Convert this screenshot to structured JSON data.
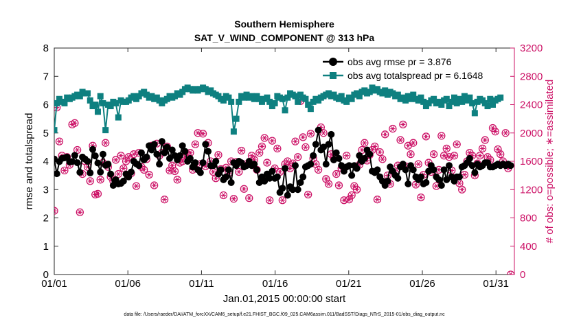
{
  "chart_data": {
    "type": "line",
    "title": "Southern Hemisphere",
    "subtitle": "SAT_V_WIND_COMPONENT @ 313 hPa",
    "xlabel": "Jan.01,2015 00:00:00 start",
    "ylabel": "rmse and totalspread",
    "y2label": "# of obs: o=possible; ∗=assimilated",
    "footnote": "data file: /Users/raeder/DAI/ATM_forcXX/CAM6_setup/f.e21.FHIST_BGC.f09_025.CAM6assim.011/BadSST/Diags_NTrS_2015-01/obs_diag_output.nc",
    "xlim": [
      0,
      31.25
    ],
    "ylim": [
      0,
      8
    ],
    "y2lim": [
      0,
      3200
    ],
    "x_ticks": [
      0,
      5,
      10,
      15,
      20,
      25,
      30
    ],
    "x_tick_labels": [
      "01/01",
      "01/06",
      "01/11",
      "01/16",
      "01/21",
      "01/26",
      "01/31"
    ],
    "y_ticks": [
      0,
      1,
      2,
      3,
      4,
      5,
      6,
      7,
      8
    ],
    "y_tick_labels": [
      "0",
      "1",
      "2",
      "3",
      "4",
      "5",
      "6",
      "7",
      "8"
    ],
    "y2_ticks": [
      0,
      400,
      800,
      1200,
      1600,
      2000,
      2400,
      2800,
      3200
    ],
    "y2_tick_labels": [
      "0",
      "400",
      "800",
      "1200",
      "1600",
      "2000",
      "2400",
      "2800",
      "3200"
    ],
    "grid": false,
    "legend_position": "top-right",
    "colors": {
      "rmse": "#000000",
      "spread": "#0e8080",
      "obs": "#cc1166"
    },
    "series": [
      {
        "name": "obs avg rmse pr = 3.876",
        "axis": "left",
        "marker": "circle",
        "values": [
          4.08,
          3.56,
          3.99,
          4.1,
          4.12,
          4.15,
          3.98,
          3.99,
          4.21,
          3.95,
          3.61,
          4.15,
          4.08,
          4.0,
          3.59,
          4.42,
          4.19,
          3.94,
          3.62,
          4.25,
          3.86,
          3.9,
          3.55,
          3.15,
          3.35,
          3.2,
          3.22,
          3.3,
          3.55,
          3.45,
          3.62,
          4.0,
          3.91,
          3.85,
          4.3,
          4.05,
          4.15,
          4.55,
          4.4,
          4.6,
          4.25,
          3.9,
          4.7,
          4.3,
          4.5,
          4.1,
          4.4,
          4.2,
          4.05,
          4.2,
          4.55,
          4.35,
          4.0,
          4.1,
          3.8,
          3.95,
          3.7,
          3.6,
          3.95,
          4.6,
          4.35,
          3.85,
          3.85,
          4.0,
          3.55,
          3.7,
          3.35,
          3.45,
          3.7,
          3.25,
          3.95,
          3.85,
          4.0,
          3.95,
          3.8,
          3.85,
          4.0,
          3.85,
          3.9,
          3.7,
          3.25,
          3.45,
          3.3,
          3.55,
          3.4,
          3.65,
          3.4,
          3.45,
          2.9,
          3.05,
          3.75,
          2.8,
          3.1,
          3.0,
          3.85,
          3.0,
          3.25,
          3.45,
          3.8,
          3.85,
          3.9,
          4.2,
          4.6,
          5.1,
          4.4,
          4.5,
          3.9,
          4.6,
          4.95,
          4.05,
          4.3,
          4.1,
          3.85,
          3.65,
          3.8,
          3.85,
          3.5,
          3.85,
          3.75,
          4.2,
          4.0,
          4.1,
          4.4,
          4.25,
          3.65,
          3.6,
          3.7,
          3.45,
          3.3,
          3.15,
          3.3,
          3.8,
          3.65,
          3.5,
          3.4,
          3.8,
          3.9,
          3.7,
          3.2,
          3.85,
          3.7,
          3.45,
          3.35,
          3.45,
          3.2,
          3.25,
          3.65,
          3.85,
          3.7,
          3.45,
          3.35,
          3.15,
          3.7,
          3.35,
          3.85,
          3.45,
          3.3,
          3.45,
          3.45,
          3.8,
          3.85,
          3.95,
          4.1,
          3.85,
          3.6,
          3.9,
          3.8,
          3.85,
          3.95,
          3.95,
          3.8,
          3.8,
          3.85,
          3.9,
          3.85,
          3.9,
          3.85,
          3.9,
          3.85
        ]
      },
      {
        "name": "obs avg totalspread pr = 6.1648",
        "axis": "left",
        "marker": "square",
        "values": [
          5.1,
          6.05,
          6.2,
          6.1,
          6.05,
          6.25,
          6.2,
          6.25,
          6.3,
          6.35,
          6.3,
          6.45,
          6.4,
          6.4,
          6.15,
          5.95,
          6.0,
          5.75,
          6.3,
          6.05,
          5.1,
          6.0,
          5.95,
          6.1,
          6.05,
          5.55,
          6.15,
          6.1,
          6.1,
          6.15,
          6.25,
          6.3,
          6.2,
          6.3,
          6.4,
          6.45,
          6.35,
          6.25,
          6.3,
          6.2,
          6.25,
          6.15,
          6.05,
          6.15,
          6.2,
          6.3,
          6.25,
          6.3,
          6.4,
          6.35,
          6.45,
          6.55,
          6.6,
          6.55,
          6.5,
          6.55,
          6.5,
          6.55,
          6.6,
          6.55,
          6.45,
          6.5,
          6.4,
          6.35,
          6.3,
          6.2,
          6.15,
          6.3,
          6.25,
          6.1,
          5.05,
          5.5,
          6.1,
          6.3,
          6.25,
          6.35,
          6.25,
          6.3,
          6.2,
          6.3,
          6.2,
          6.1,
          6.2,
          6.25,
          6.1,
          5.95,
          6.05,
          6.3,
          6.25,
          6.2,
          5.8,
          6.25,
          6.4,
          6.35,
          6.3,
          6.1,
          6.35,
          6.25,
          6.2,
          6.0,
          5.85,
          6.1,
          6.2,
          6.15,
          6.25,
          6.3,
          6.35,
          6.4,
          6.3,
          6.35,
          6.25,
          6.2,
          6.3,
          6.15,
          6.1,
          6.25,
          6.2,
          6.35,
          6.4,
          6.3,
          6.45,
          6.5,
          6.4,
          6.45,
          6.6,
          6.5,
          6.55,
          6.45,
          6.4,
          6.5,
          6.35,
          6.45,
          6.4,
          6.3,
          6.35,
          6.2,
          6.25,
          6.15,
          6.3,
          6.2,
          6.35,
          6.2,
          6.15,
          6.25,
          6.1,
          5.95,
          6.05,
          6.15,
          6.2,
          6.05,
          6.1,
          6.0,
          6.15,
          6.2,
          5.95,
          6.1,
          6.25,
          6.05,
          6.2,
          6.1,
          6.3,
          6.15,
          6.25,
          6.05,
          5.7,
          6.1,
          6.2,
          6.15,
          6.05,
          5.95,
          6.2,
          6.0,
          6.15,
          6.2,
          6.25
        ]
      },
      {
        "name": "obs possible",
        "axis": "right",
        "marker": "open-circle",
        "values": [
          900,
          2360,
          1880,
          1680,
          1470,
          1660,
          1550,
          2120,
          2140,
          1760,
          880,
          1420,
          1600,
          1520,
          1320,
          1820,
          1130,
          1140,
          1340,
          1580,
          1860,
          1520,
          1380,
          1320,
          1620,
          1420,
          1680,
          1500,
          1600,
          1660,
          1430,
          1700,
          1250,
          1720,
          1520,
          1480,
          1630,
          1410,
          1820,
          1260,
          1850,
          1680,
          1720,
          1060,
          1810,
          1470,
          1540,
          1460,
          1340,
          1580,
          1600,
          1650,
          1700,
          1720,
          1480,
          1840,
          2000,
          1560,
          1990,
          1530,
          1860,
          1600,
          1450,
          1360,
          1690,
          1490,
          1120,
          1510,
          1430,
          1600,
          1070,
          1590,
          1450,
          1750,
          1210,
          1560,
          1080,
          1680,
          1620,
          1480,
          1720,
          1810,
          1930,
          1580,
          1050,
          1890,
          1500,
          1780,
          1450,
          1050,
          1560,
          1600,
          1500,
          1570,
          1880,
          1660,
          2450,
          1940,
          1800,
          1130,
          1990,
          1640,
          1560,
          1480,
          2080,
          2000,
          1350,
          1280,
          1700,
          1640,
          1420,
          1260,
          1500,
          1050,
          1680,
          1060,
          1120,
          1250,
          1200,
          1550,
          1760,
          1860,
          1610,
          1690,
          1760,
          1810,
          1060,
          1730,
          1630,
          1980,
          1400,
          1280,
          2060,
          1430,
          1540,
          1900,
          2120,
          1530,
          1820,
          1700,
          1860,
          1270,
          1560,
          1090,
          1410,
          1950,
          1580,
          1450,
          1700,
          1250,
          1480,
          1960,
          1680,
          1780,
          1660,
          1470,
          1680,
          1840,
          1290,
          1200,
          1410,
          1600,
          1720,
          1680,
          1400,
          1570,
          1680,
          1780,
          1900,
          1660,
          1620,
          2070,
          2020,
          1770,
          1700,
          1600,
          2000,
          1500,
          0
        ]
      }
    ]
  }
}
